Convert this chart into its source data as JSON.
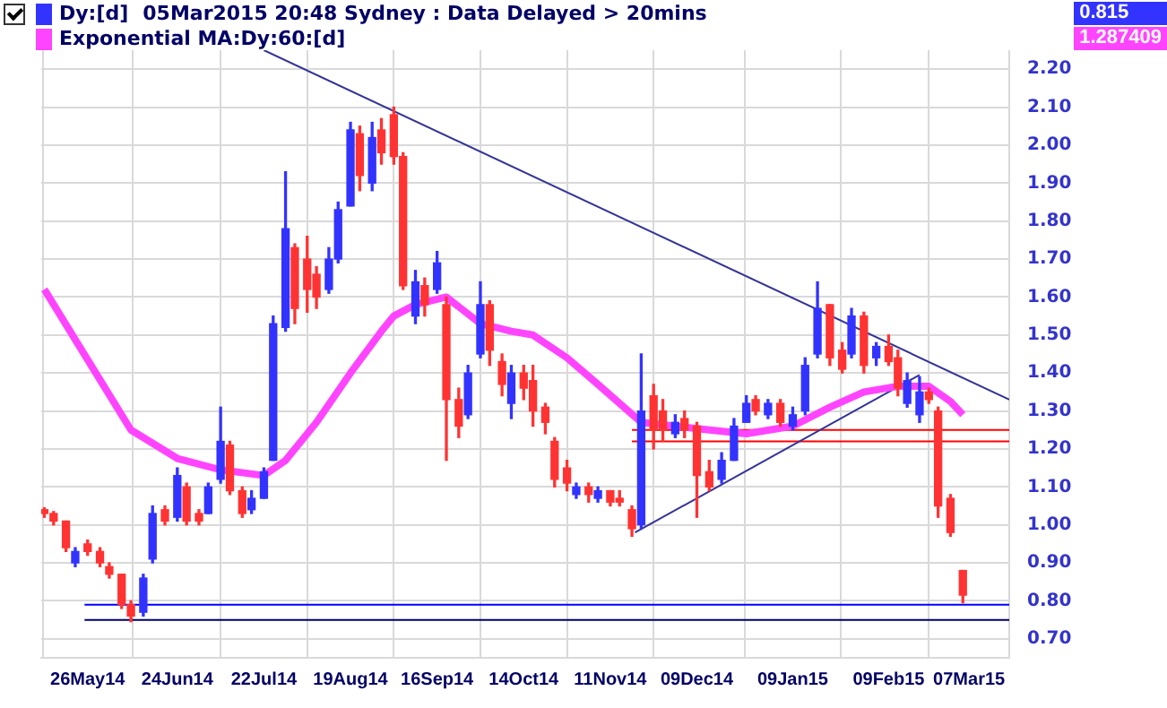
{
  "chart_data": {
    "type": "candlestick",
    "title": "05Mar2015 20:48 Sydney : Data Delayed > 20mins",
    "legend": "top left",
    "grid": true,
    "xlim": [
      "2014-05-11",
      "2015-03-20"
    ],
    "xticks": [
      {
        "value": "2014-05-26",
        "label": "26May14"
      },
      {
        "value": "2014-06-24",
        "label": "24Jun14"
      },
      {
        "value": "2014-07-22",
        "label": "22Jul14"
      },
      {
        "value": "2014-08-19",
        "label": "19Aug14"
      },
      {
        "value": "2014-09-16",
        "label": "16Sep14"
      },
      {
        "value": "2014-10-14",
        "label": "14Oct14"
      },
      {
        "value": "2014-11-11",
        "label": "11Nov14"
      },
      {
        "value": "2014-12-09",
        "label": "09Dec14"
      },
      {
        "value": "2015-01-09",
        "label": "09Jan15"
      },
      {
        "value": "2015-02-09",
        "label": "09Feb15"
      },
      {
        "value": "2015-03-07",
        "label": "07Mar15"
      }
    ],
    "ylim": [
      0.65,
      2.25
    ],
    "yticks": [
      {
        "value": 0.7,
        "label": "0.70"
      },
      {
        "value": 0.8,
        "label": "0.80"
      },
      {
        "value": 0.9,
        "label": "0.90"
      },
      {
        "value": 1.0,
        "label": "1.00"
      },
      {
        "value": 1.1,
        "label": "1.10"
      },
      {
        "value": 1.2,
        "label": "1.20"
      },
      {
        "value": 1.3,
        "label": "1.30"
      },
      {
        "value": 1.4,
        "label": "1.40"
      },
      {
        "value": 1.5,
        "label": "1.50"
      },
      {
        "value": 1.6,
        "label": "1.60"
      },
      {
        "value": 1.7,
        "label": "1.70"
      },
      {
        "value": 1.8,
        "label": "1.80"
      },
      {
        "value": 1.9,
        "label": "1.90"
      },
      {
        "value": 2.0,
        "label": "2.00"
      },
      {
        "value": 2.1,
        "label": "2.10"
      },
      {
        "value": 2.2,
        "label": "2.20"
      }
    ],
    "annotations": [
      "0.815",
      "1.287409"
    ],
    "series": [
      {
        "name": "Dy:[d]",
        "color": "#3333ff",
        "x": [
          "2014-05-12",
          "2014-05-15",
          "2014-05-19",
          "2014-05-22",
          "2014-05-26",
          "2014-05-30",
          "2014-06-02",
          "2014-06-06",
          "2014-06-09",
          "2014-06-13",
          "2014-06-16",
          "2014-06-20",
          "2014-06-24",
          "2014-06-27",
          "2014-07-01",
          "2014-07-04",
          "2014-07-08",
          "2014-07-11",
          "2014-07-15",
          "2014-07-18",
          "2014-07-22",
          "2014-07-25",
          "2014-07-29",
          "2014-08-01",
          "2014-08-05",
          "2014-08-08",
          "2014-08-12",
          "2014-08-15",
          "2014-08-19",
          "2014-08-22",
          "2014-08-26",
          "2014-08-29",
          "2014-09-02",
          "2014-09-05",
          "2014-09-09",
          "2014-09-12",
          "2014-09-16",
          "2014-09-19",
          "2014-09-23",
          "2014-09-26",
          "2014-09-30",
          "2014-10-03",
          "2014-10-07",
          "2014-10-10",
          "2014-10-14",
          "2014-10-17",
          "2014-10-21",
          "2014-10-24",
          "2014-10-28",
          "2014-10-31",
          "2014-11-04",
          "2014-11-07",
          "2014-11-11",
          "2014-11-14",
          "2014-11-18",
          "2014-11-21",
          "2014-11-25",
          "2014-11-28",
          "2014-12-02",
          "2014-12-05",
          "2014-12-09",
          "2014-12-13",
          "2014-12-17",
          "2014-12-21",
          "2014-12-25",
          "2014-12-28",
          "2015-01-01",
          "2015-01-05",
          "2015-01-09",
          "2015-01-13",
          "2015-01-17",
          "2015-01-21",
          "2015-01-25",
          "2015-01-28",
          "2015-02-01",
          "2015-02-05",
          "2015-02-09",
          "2015-02-12",
          "2015-02-15",
          "2015-02-19",
          "2015-02-22",
          "2015-02-25",
          "2015-03-01",
          "2015-03-05"
        ],
        "ohlc": [
          [
            1.04,
            1.045,
            1.02,
            1.03
          ],
          [
            1.03,
            1.035,
            1.0,
            1.01
          ],
          [
            1.01,
            1.01,
            0.93,
            0.94
          ],
          [
            0.9,
            0.94,
            0.89,
            0.93
          ],
          [
            0.95,
            0.96,
            0.92,
            0.93
          ],
          [
            0.93,
            0.94,
            0.89,
            0.9
          ],
          [
            0.89,
            0.9,
            0.86,
            0.87
          ],
          [
            0.87,
            0.87,
            0.78,
            0.79
          ],
          [
            0.79,
            0.8,
            0.745,
            0.76
          ],
          [
            0.77,
            0.87,
            0.76,
            0.86
          ],
          [
            0.91,
            1.05,
            0.9,
            1.03
          ],
          [
            1.04,
            1.05,
            1.0,
            1.01
          ],
          [
            1.02,
            1.15,
            1.01,
            1.13
          ],
          [
            1.1,
            1.11,
            1.0,
            1.01
          ],
          [
            1.03,
            1.04,
            1.0,
            1.01
          ],
          [
            1.03,
            1.11,
            1.03,
            1.1
          ],
          [
            1.12,
            1.31,
            1.11,
            1.22
          ],
          [
            1.21,
            1.22,
            1.08,
            1.09
          ],
          [
            1.09,
            1.1,
            1.02,
            1.03
          ],
          [
            1.04,
            1.09,
            1.03,
            1.07
          ],
          [
            1.07,
            1.15,
            1.07,
            1.14
          ],
          [
            1.17,
            1.55,
            1.17,
            1.53
          ],
          [
            1.52,
            1.93,
            1.51,
            1.78
          ],
          [
            1.73,
            1.74,
            1.53,
            1.57
          ],
          [
            1.7,
            1.76,
            1.56,
            1.62
          ],
          [
            1.66,
            1.68,
            1.57,
            1.6
          ],
          [
            1.62,
            1.73,
            1.61,
            1.7
          ],
          [
            1.7,
            1.85,
            1.69,
            1.83
          ],
          [
            1.84,
            2.06,
            1.84,
            2.04
          ],
          [
            2.03,
            2.05,
            1.88,
            1.92
          ],
          [
            1.9,
            2.06,
            1.88,
            2.02
          ],
          [
            2.04,
            2.07,
            1.95,
            1.98
          ],
          [
            2.08,
            2.1,
            1.95,
            1.97
          ],
          [
            1.97,
            1.98,
            1.62,
            1.63
          ],
          [
            1.55,
            1.67,
            1.53,
            1.64
          ],
          [
            1.63,
            1.65,
            1.55,
            1.58
          ],
          [
            1.62,
            1.72,
            1.61,
            1.69
          ],
          [
            1.58,
            1.6,
            1.17,
            1.33
          ],
          [
            1.33,
            1.36,
            1.23,
            1.26
          ],
          [
            1.29,
            1.42,
            1.28,
            1.4
          ],
          [
            1.45,
            1.64,
            1.44,
            1.58
          ],
          [
            1.58,
            1.59,
            1.42,
            1.46
          ],
          [
            1.43,
            1.45,
            1.34,
            1.37
          ],
          [
            1.32,
            1.42,
            1.28,
            1.4
          ],
          [
            1.4,
            1.42,
            1.33,
            1.36
          ],
          [
            1.38,
            1.42,
            1.26,
            1.3
          ],
          [
            1.31,
            1.32,
            1.24,
            1.27
          ],
          [
            1.22,
            1.23,
            1.1,
            1.12
          ],
          [
            1.15,
            1.17,
            1.09,
            1.11
          ],
          [
            1.08,
            1.11,
            1.07,
            1.1
          ],
          [
            1.1,
            1.11,
            1.06,
            1.08
          ],
          [
            1.07,
            1.1,
            1.06,
            1.09
          ],
          [
            1.09,
            1.09,
            1.05,
            1.06
          ],
          [
            1.07,
            1.09,
            1.05,
            1.06
          ],
          [
            1.04,
            1.05,
            0.97,
            0.99
          ],
          [
            1.0,
            1.45,
            0.99,
            1.3
          ],
          [
            1.34,
            1.37,
            1.2,
            1.25
          ],
          [
            1.3,
            1.33,
            1.22,
            1.25
          ],
          [
            1.24,
            1.29,
            1.23,
            1.27
          ],
          [
            1.28,
            1.3,
            1.23,
            1.25
          ],
          [
            1.26,
            1.27,
            1.02,
            1.13
          ],
          [
            1.14,
            1.17,
            1.09,
            1.1
          ],
          [
            1.12,
            1.19,
            1.11,
            1.17
          ],
          [
            1.17,
            1.28,
            1.17,
            1.26
          ],
          [
            1.27,
            1.34,
            1.27,
            1.32
          ],
          [
            1.33,
            1.34,
            1.29,
            1.3
          ],
          [
            1.29,
            1.33,
            1.28,
            1.32
          ],
          [
            1.32,
            1.33,
            1.26,
            1.27
          ],
          [
            1.26,
            1.31,
            1.25,
            1.29
          ],
          [
            1.3,
            1.44,
            1.29,
            1.42
          ],
          [
            1.45,
            1.64,
            1.44,
            1.57
          ],
          [
            1.58,
            1.58,
            1.42,
            1.44
          ],
          [
            1.46,
            1.48,
            1.4,
            1.41
          ],
          [
            1.45,
            1.57,
            1.44,
            1.55
          ],
          [
            1.55,
            1.56,
            1.4,
            1.42
          ],
          [
            1.44,
            1.48,
            1.42,
            1.47
          ],
          [
            1.47,
            1.5,
            1.42,
            1.43
          ],
          [
            1.44,
            1.46,
            1.34,
            1.36
          ],
          [
            1.32,
            1.4,
            1.31,
            1.38
          ],
          [
            1.29,
            1.39,
            1.27,
            1.35
          ],
          [
            1.35,
            1.36,
            1.32,
            1.33
          ],
          [
            1.3,
            1.31,
            1.02,
            1.05
          ],
          [
            1.07,
            1.08,
            0.97,
            0.98
          ],
          [
            0.88,
            0.88,
            0.795,
            0.815
          ]
        ],
        "colors": [
          "#ff3333",
          "#ff3333",
          "#ff3333",
          "#3333ff",
          "#ff3333",
          "#ff3333",
          "#ff3333",
          "#ff3333",
          "#ff3333",
          "#3333ff",
          "#3333ff",
          "#ff3333",
          "#3333ff",
          "#ff3333",
          "#ff3333",
          "#3333ff",
          "#3333ff",
          "#ff3333",
          "#ff3333",
          "#3333ff",
          "#3333ff",
          "#3333ff",
          "#3333ff",
          "#ff3333",
          "#ff3333",
          "#ff3333",
          "#3333ff",
          "#3333ff",
          "#3333ff",
          "#ff3333",
          "#3333ff",
          "#ff3333",
          "#ff3333",
          "#ff3333",
          "#3333ff",
          "#ff3333",
          "#3333ff",
          "#ff3333",
          "#ff3333",
          "#3333ff",
          "#3333ff",
          "#ff3333",
          "#ff3333",
          "#3333ff",
          "#ff3333",
          "#ff3333",
          "#ff3333",
          "#ff3333",
          "#ff3333",
          "#3333ff",
          "#ff3333",
          "#3333ff",
          "#ff3333",
          "#ff3333",
          "#ff3333",
          "#3333ff",
          "#ff3333",
          "#ff3333",
          "#3333ff",
          "#ff3333",
          "#ff3333",
          "#ff3333",
          "#3333ff",
          "#3333ff",
          "#3333ff",
          "#ff3333",
          "#3333ff",
          "#ff3333",
          "#3333ff",
          "#3333ff",
          "#3333ff",
          "#ff3333",
          "#ff3333",
          "#3333ff",
          "#ff3333",
          "#3333ff",
          "#ff3333",
          "#ff3333",
          "#3333ff",
          "#3333ff",
          "#ff3333",
          "#ff3333",
          "#ff3333",
          "#ff3333"
        ]
      },
      {
        "type": "line",
        "name": "Exponential MA:Dy:60:[d]",
        "color": "#ff44ff",
        "x": [
          "2014-05-12",
          "2014-05-26",
          "2014-06-09",
          "2014-06-24",
          "2014-07-08",
          "2014-07-22",
          "2014-07-29",
          "2014-08-08",
          "2014-08-19",
          "2014-08-29",
          "2014-09-02",
          "2014-09-09",
          "2014-09-19",
          "2014-09-30",
          "2014-10-10",
          "2014-10-17",
          "2014-10-28",
          "2014-11-07",
          "2014-11-21",
          "2014-12-02",
          "2014-12-13",
          "2014-12-25",
          "2015-01-09",
          "2015-01-21",
          "2015-02-01",
          "2015-02-12",
          "2015-02-22",
          "2015-03-01",
          "2015-03-05"
        ],
        "values": [
          1.62,
          1.435,
          1.25,
          1.175,
          1.145,
          1.13,
          1.17,
          1.27,
          1.4,
          1.51,
          1.55,
          1.58,
          1.6,
          1.53,
          1.51,
          1.5,
          1.44,
          1.37,
          1.27,
          1.26,
          1.25,
          1.24,
          1.26,
          1.31,
          1.35,
          1.365,
          1.365,
          1.325,
          1.29
        ]
      },
      {
        "type": "line",
        "color": "#333399",
        "x": [
          "2014-07-22",
          "2015-03-20"
        ],
        "values": [
          2.25,
          1.33
        ]
      },
      {
        "type": "line",
        "color": "#333399",
        "x": [
          "2014-11-19",
          "2015-02-19"
        ],
        "values": [
          0.98,
          1.395
        ]
      },
      {
        "type": "line",
        "color": "#ff0000",
        "x": [
          "2014-11-18",
          "2015-03-20"
        ],
        "values": [
          1.25,
          1.25
        ]
      },
      {
        "type": "line",
        "color": "#ff0000",
        "x": [
          "2014-11-18",
          "2015-03-20"
        ],
        "values": [
          1.22,
          1.22
        ]
      },
      {
        "type": "line",
        "color": "#0000ff",
        "x": [
          "2014-05-25",
          "2015-03-20"
        ],
        "values": [
          0.79,
          0.79
        ]
      },
      {
        "type": "line",
        "color": "#000066",
        "x": [
          "2014-05-25",
          "2015-03-20"
        ],
        "values": [
          0.75,
          0.75
        ]
      }
    ]
  }
}
